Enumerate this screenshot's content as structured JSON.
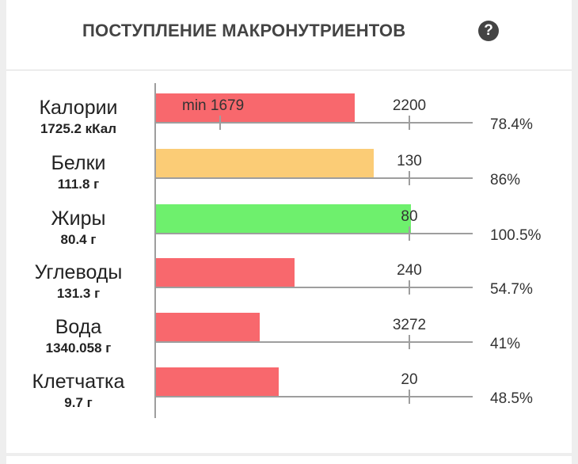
{
  "header": {
    "title": "ПОСТУПЛЕНИЕ МАКРОНУТРИЕНТОВ",
    "help_icon": "question-circle-icon"
  },
  "colors": {
    "low": "#f8686d",
    "near": "#fbcc76",
    "ok": "#6ef06d",
    "axis": "#9e9e9e"
  },
  "rows": [
    {
      "name": "Калории",
      "amount": "1725.2 кКал",
      "min_label": "min 1679",
      "target": "2200",
      "percent": "78.4%",
      "fill": 0.784,
      "status": "low"
    },
    {
      "name": "Белки",
      "amount": "111.8 г",
      "target": "130",
      "percent": "86%",
      "fill": 0.86,
      "status": "near"
    },
    {
      "name": "Жиры",
      "amount": "80.4 г",
      "target": "80",
      "percent": "100.5%",
      "fill": 1.005,
      "status": "ok"
    },
    {
      "name": "Углеводы",
      "amount": "131.3 г",
      "target": "240",
      "percent": "54.7%",
      "fill": 0.547,
      "status": "low"
    },
    {
      "name": "Вода",
      "amount": "1340.058 г",
      "target": "3272",
      "percent": "41%",
      "fill": 0.41,
      "status": "low"
    },
    {
      "name": "Клетчатка",
      "amount": "9.7 г",
      "target": "20",
      "percent": "48.5%",
      "fill": 0.485,
      "status": "low"
    }
  ]
}
